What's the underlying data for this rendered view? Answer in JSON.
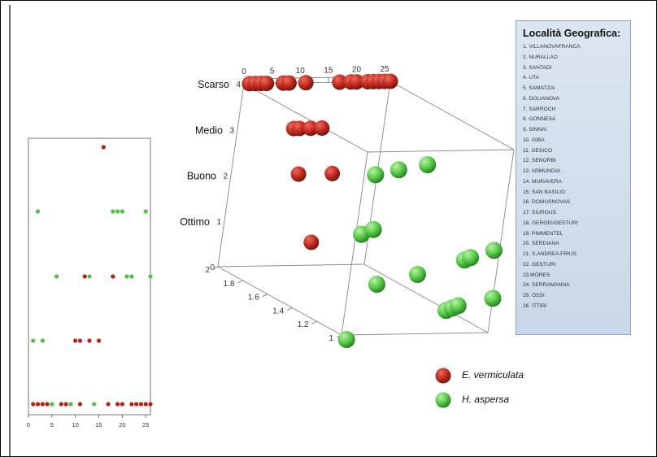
{
  "legend": {
    "title": "Località Geografica:",
    "items": [
      "1. VILLANOVAFRANCA",
      "2. NURALLAO",
      "3. SANTADI",
      "4. UTA",
      "5. SAMATZAI",
      "6. DOLIANOVA",
      "7. SARROCH",
      "8. GONNESA",
      "9. SINNAI",
      "10. GIBA",
      "11. GESICO",
      "12. SENORBI",
      "13. ARMUNGIA",
      "14. MURAVERA",
      "15. SAN BASILIO",
      "16. DOMUSNOVAS",
      "17. SIURGUS",
      "18. GERGEI/GESTURI",
      "19. PIMMENTEL",
      "20. SERDIANA",
      "21. S.ANDREA FRIUS",
      "22. GESTURI",
      "23.MORES",
      "24. SERRAMANNA",
      "25. OSSI",
      "26. ITTIRI"
    ]
  },
  "species_legend": [
    {
      "label": "E. vermiculata",
      "color": "#b5221b"
    },
    {
      "label": "H. aspersa",
      "color": "#52c244"
    }
  ],
  "chart_data": [
    {
      "type": "scatter",
      "title": "",
      "xlabel": "",
      "ylabel": "",
      "xlim": [
        0,
        26
      ],
      "x_ticks": [
        "0",
        "5",
        "10",
        "15",
        "20",
        "25"
      ],
      "grid": false,
      "series": [
        {
          "name": "E. vermiculata",
          "color": "#b5221b",
          "points": [
            [
              1,
              1
            ],
            [
              2,
              1
            ],
            [
              3,
              1
            ],
            [
              4,
              1
            ],
            [
              7,
              1
            ],
            [
              8,
              1
            ],
            [
              11,
              1
            ],
            [
              17,
              1
            ],
            [
              19,
              1
            ],
            [
              20,
              1
            ],
            [
              22,
              1
            ],
            [
              23,
              1
            ],
            [
              24,
              1
            ],
            [
              25,
              1
            ],
            [
              26,
              1
            ],
            [
              10,
              2
            ],
            [
              11,
              2
            ],
            [
              13,
              2
            ],
            [
              15,
              2
            ],
            [
              12,
              3
            ],
            [
              18,
              3
            ],
            [
              16,
              5
            ]
          ]
        },
        {
          "name": "H. aspersa",
          "color": "#52c244",
          "points": [
            [
              5,
              1
            ],
            [
              9,
              1
            ],
            [
              14,
              1
            ],
            [
              1,
              2
            ],
            [
              3,
              2
            ],
            [
              6,
              3
            ],
            [
              13,
              3
            ],
            [
              21,
              3
            ],
            [
              22,
              3
            ],
            [
              26,
              3
            ],
            [
              2,
              4
            ],
            [
              18,
              4
            ],
            [
              19,
              4
            ],
            [
              20,
              4
            ],
            [
              25,
              4
            ]
          ]
        }
      ]
    },
    {
      "type": "scatter",
      "title": "",
      "xlabel": "",
      "ylabel": "",
      "zlabel": "",
      "xlim": [
        0,
        26
      ],
      "ylim": [
        0,
        4
      ],
      "zlim": [
        1,
        2
      ],
      "x_ticks": [
        "0",
        "5",
        "10",
        "15",
        "20",
        "25"
      ],
      "y_ticks": [
        "0",
        "1",
        "2",
        "3",
        "4"
      ],
      "z_ticks": [
        "1",
        "1.2",
        "1.4",
        "1.6",
        "1.8",
        "2"
      ],
      "y_category_labels": [
        {
          "label": "Ottimo",
          "value": 1
        },
        {
          "label": "Buono",
          "value": 2
        },
        {
          "label": "Medio",
          "value": 3
        },
        {
          "label": "Scarso",
          "value": 4
        }
      ],
      "series": [
        {
          "name": "E. vermiculata",
          "color": "#b5221b",
          "points": [
            [
              1,
              4,
              2
            ],
            [
              2,
              4,
              2
            ],
            [
              3,
              4,
              2
            ],
            [
              4,
              4,
              2
            ],
            [
              7,
              4,
              2
            ],
            [
              8,
              4,
              2
            ],
            [
              11,
              4,
              2
            ],
            [
              17,
              4,
              2
            ],
            [
              19,
              4,
              2
            ],
            [
              20,
              4,
              2
            ],
            [
              22,
              4,
              2
            ],
            [
              23,
              4,
              2
            ],
            [
              24,
              4,
              2
            ],
            [
              25,
              4,
              2
            ],
            [
              26,
              4,
              2
            ],
            [
              10,
              3,
              2
            ],
            [
              11,
              3,
              2
            ],
            [
              13,
              3,
              2
            ],
            [
              15,
              3,
              2
            ],
            [
              12,
              2,
              2
            ],
            [
              18,
              2,
              2
            ],
            [
              16,
              0.5,
              2
            ]
          ]
        },
        {
          "name": "H. aspersa",
          "color": "#52c244",
          "points": [
            [
              2,
              3.5,
              1
            ],
            [
              6,
              3.6,
              1
            ],
            [
              11,
              3.7,
              1
            ],
            [
              1,
              2.2,
              1
            ],
            [
              3,
              2.3,
              1
            ],
            [
              5,
              1.1,
              1
            ],
            [
              12,
              1.3,
              1
            ],
            [
              20,
              1.6,
              1
            ],
            [
              21,
              1.65,
              1
            ],
            [
              25,
              1.8,
              1
            ],
            [
              18,
              0.5,
              1
            ],
            [
              19,
              0.55,
              1
            ],
            [
              20,
              0.6,
              1
            ],
            [
              26,
              0.75,
              1
            ],
            [
              1,
              -0.1,
              1
            ]
          ]
        }
      ]
    }
  ]
}
